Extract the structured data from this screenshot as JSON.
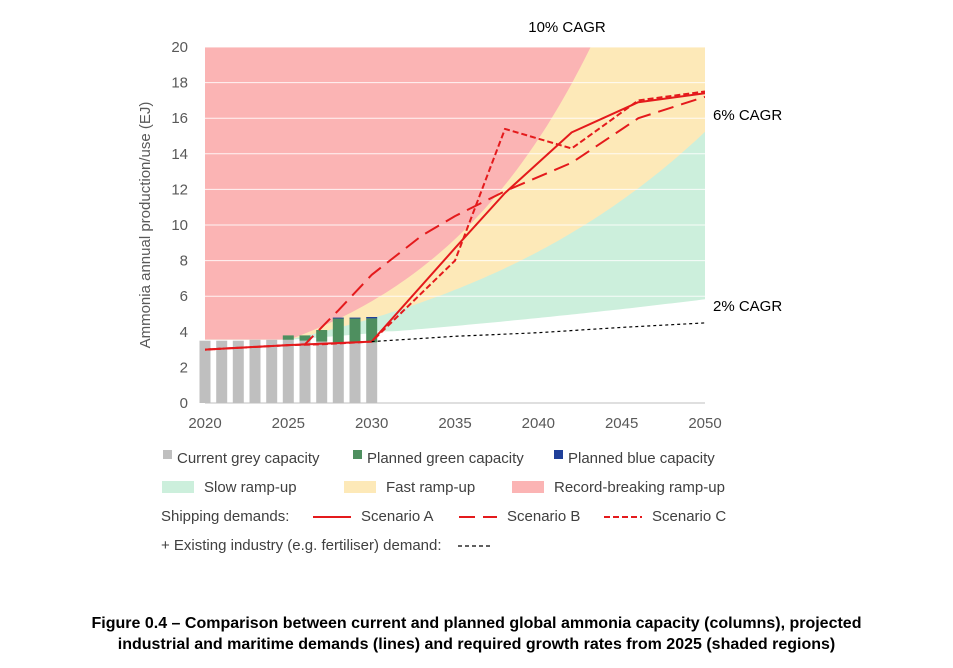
{
  "chart_data": {
    "type": "bar+line+area",
    "ylabel": "Ammonia annual production/use (EJ)",
    "xlabel": "",
    "xlim": [
      2020,
      2050
    ],
    "ylim": [
      0,
      20
    ],
    "x_ticks": [
      "2020",
      "2025",
      "2030",
      "2035",
      "2040",
      "2045",
      "2050"
    ],
    "y_ticks": [
      "0",
      "2",
      "4",
      "6",
      "8",
      "10",
      "12",
      "14",
      "16",
      "18",
      "20"
    ],
    "gridlines": true,
    "bars": {
      "years": [
        2020,
        2021,
        2022,
        2023,
        2024,
        2025,
        2026,
        2027,
        2028,
        2029,
        2030
      ],
      "series": [
        {
          "name": "Current grey capacity",
          "color": "#bfbfbf",
          "values": [
            3.5,
            3.5,
            3.5,
            3.55,
            3.55,
            3.55,
            3.5,
            3.45,
            3.4,
            3.4,
            3.4
          ]
        },
        {
          "name": "Planned green capacity",
          "color": "#4e8f5f",
          "values": [
            0,
            0,
            0,
            0,
            0,
            0.25,
            0.3,
            0.65,
            1.35,
            1.35,
            1.35
          ]
        },
        {
          "name": "Planned blue capacity",
          "color": "#1f3f99",
          "values": [
            0,
            0,
            0,
            0,
            0,
            0,
            0,
            0,
            0.05,
            0.05,
            0.08
          ]
        }
      ]
    },
    "regions": [
      {
        "name": "Slow ramp-up",
        "color": "#ccefdc",
        "cagr": 2
      },
      {
        "name": "Fast ramp-up",
        "color": "#fde9b8",
        "cagr": 6
      },
      {
        "name": "Record-breaking ramp-up",
        "color": "#fbb4b4",
        "cagr": 10
      }
    ],
    "region_base": {
      "year": 2025,
      "value": 3.55
    },
    "cagr_labels": [
      "10% CAGR",
      "6% CAGR",
      "2% CAGR"
    ],
    "lines": [
      {
        "name": "Scenario A",
        "color": "#e41a1c",
        "dash": "solid",
        "x": [
          2020,
          2025,
          2030,
          2035,
          2038,
          2042,
          2046,
          2050
        ],
        "y": [
          3.0,
          3.25,
          3.45,
          8.7,
          11.8,
          15.2,
          16.9,
          17.4
        ]
      },
      {
        "name": "Scenario B",
        "color": "#e41a1c",
        "dash": "long",
        "x": [
          2020,
          2025,
          2026,
          2028,
          2030,
          2033,
          2035,
          2038,
          2042,
          2046,
          2050
        ],
        "y": [
          3.0,
          3.25,
          3.3,
          5.2,
          7.2,
          9.4,
          10.5,
          11.9,
          13.5,
          16.0,
          17.2
        ]
      },
      {
        "name": "Scenario C",
        "color": "#e41a1c",
        "dash": "short",
        "x": [
          2020,
          2025,
          2027,
          2030,
          2035,
          2038,
          2042,
          2046,
          2050
        ],
        "y": [
          3.0,
          3.25,
          3.3,
          3.45,
          8.0,
          15.4,
          14.3,
          17.0,
          17.5
        ]
      },
      {
        "name": "Existing industry (e.g. fertiliser) demand",
        "color": "#000000",
        "dash": "dot",
        "x": [
          2030,
          2035,
          2040,
          2045,
          2050
        ],
        "y": [
          3.45,
          3.75,
          3.95,
          4.25,
          4.5
        ]
      }
    ]
  },
  "legend": {
    "row1": [
      "Current grey capacity",
      "Planned green capacity",
      "Planned blue capacity"
    ],
    "row2": [
      "Slow ramp-up",
      "Fast ramp-up",
      "Record-breaking ramp-up"
    ],
    "shipping_label": "Shipping demands:",
    "row3": [
      "Scenario A",
      "Scenario B",
      "Scenario C"
    ],
    "existing_label": "+ Existing industry (e.g. fertiliser) demand:"
  },
  "caption": {
    "line1": "Figure 0.4 – Comparison between current and planned global ammonia capacity (columns), projected",
    "line2": "industrial and maritime demands (lines) and required growth rates from 2025 (shaded regions)"
  }
}
